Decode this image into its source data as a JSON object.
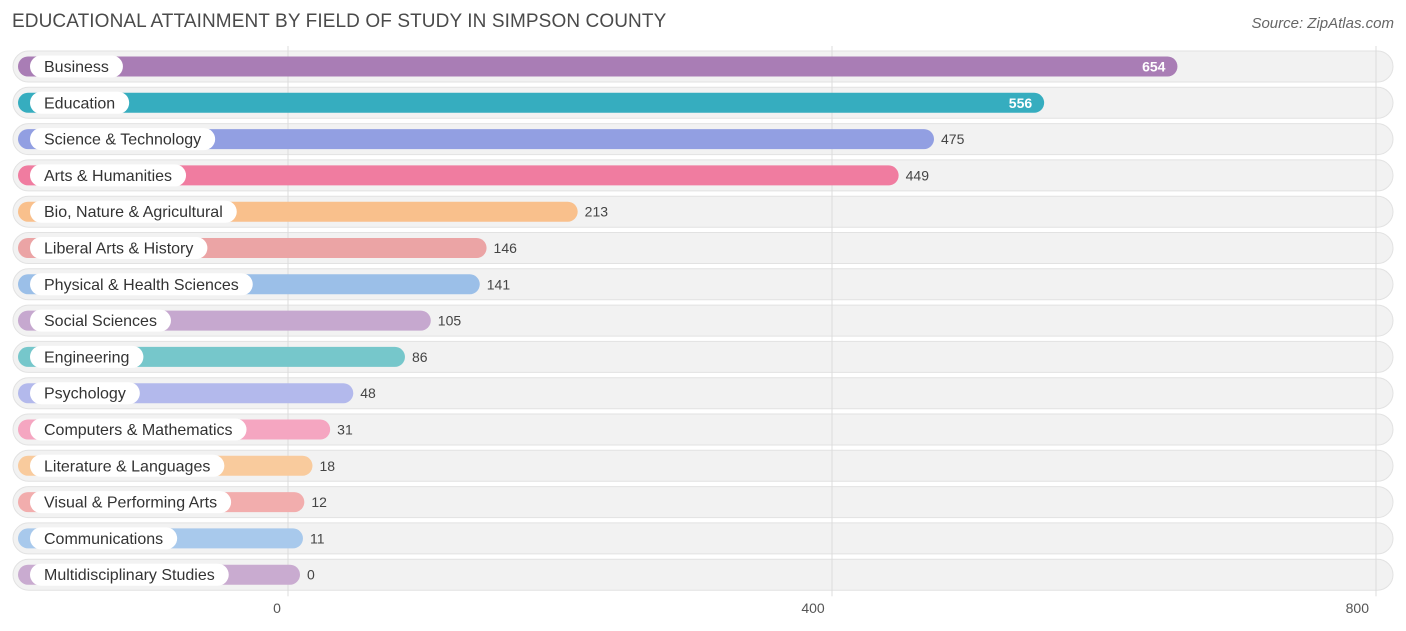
{
  "title": "EDUCATIONAL ATTAINMENT BY FIELD OF STUDY IN SIMPSON COUNTY",
  "source": "Source: ZipAtlas.com",
  "chart_data": {
    "type": "bar",
    "orientation": "horizontal",
    "title": "EDUCATIONAL ATTAINMENT BY FIELD OF STUDY IN SIMPSON COUNTY",
    "xlim": [
      0,
      800
    ],
    "ticks": [
      0,
      400,
      800
    ],
    "grid": true,
    "categories": [
      "Business",
      "Education",
      "Science & Technology",
      "Arts & Humanities",
      "Bio, Nature & Agricultural",
      "Liberal Arts & History",
      "Physical & Health Sciences",
      "Social Sciences",
      "Engineering",
      "Psychology",
      "Computers & Mathematics",
      "Literature & Languages",
      "Visual & Performing Arts",
      "Communications",
      "Multidisciplinary Studies"
    ],
    "values": [
      654,
      556,
      475,
      449,
      213,
      146,
      141,
      105,
      86,
      48,
      31,
      18,
      12,
      11,
      0
    ],
    "colors": [
      "#a97db5",
      "#36adbf",
      "#929fe2",
      "#f07ca0",
      "#f9c08c",
      "#eba4a5",
      "#9bbfe8",
      "#c6a8cf",
      "#76c7cb",
      "#b3b9ec",
      "#f5a6c1",
      "#f9cb9d",
      "#f2adad",
      "#a8c9ec",
      "#c9abd0"
    ]
  }
}
